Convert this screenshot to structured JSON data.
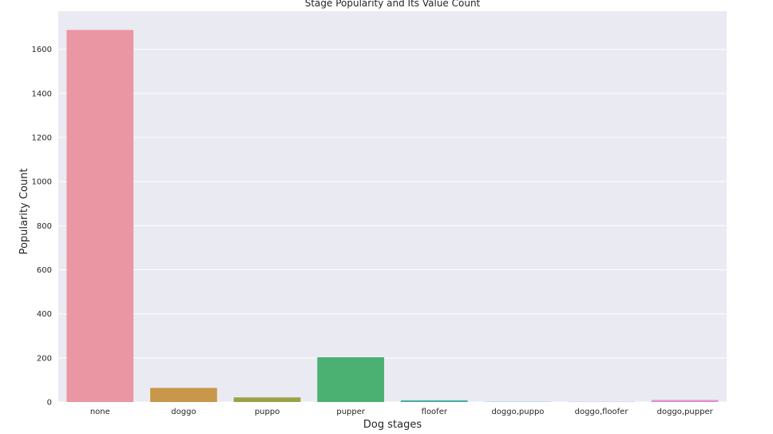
{
  "chart_data": {
    "type": "bar",
    "title": "Stage Popularity and Its Value Count",
    "xlabel": "Dog stages",
    "ylabel": "Popularity Count",
    "categories": [
      "none",
      "doggo",
      "puppo",
      "pupper",
      "floofer",
      "doggo,puppo",
      "doggo,floofer",
      "doggo,pupper"
    ],
    "values": [
      1688,
      64,
      21,
      203,
      8,
      1,
      1,
      9
    ],
    "colors": [
      "#ea96a3",
      "#c8974a",
      "#9aa245",
      "#4bb173",
      "#4dafa4",
      "#59a7d4",
      "#a49aef",
      "#e58fd2"
    ],
    "yticks": [
      0,
      200,
      400,
      600,
      800,
      1000,
      1200,
      1400,
      1600
    ],
    "ylim": [
      0,
      1773
    ],
    "grid": true,
    "background": "#eaeaf2"
  }
}
